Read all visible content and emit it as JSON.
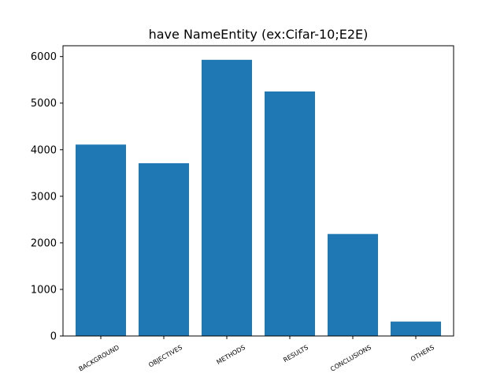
{
  "chart_data": {
    "type": "bar",
    "title": "have NameEntity (ex:Cifar-10;E2E)",
    "xlabel": "",
    "ylabel": "",
    "categories": [
      "BACKGROUND",
      "OBJECTIVES",
      "METHODS",
      "RESULTS",
      "CONCLUSIONS",
      "OTHERS"
    ],
    "values": [
      4110,
      3710,
      5930,
      5250,
      2190,
      310
    ],
    "ylim": [
      0,
      6232
    ],
    "yticks": [
      0,
      1000,
      2000,
      3000,
      4000,
      5000,
      6000
    ],
    "bar_color": "#1f77b4",
    "grid": false,
    "legend": "none"
  }
}
